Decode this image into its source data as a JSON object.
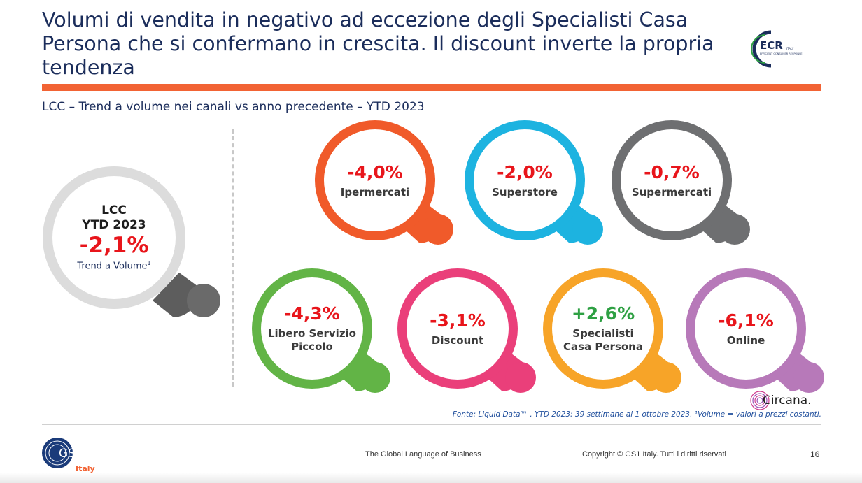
{
  "title": "Volumi di vendita in negativo ad eccezione degli Specialisti Casa Persona che si confermano in crescita. Il discount inverte la propria tendenza",
  "subtitle": "LCC – Trend a volume nei canali vs anno precedente – YTD 2023",
  "logo_ecr": {
    "main": "ECR",
    "tag": "ITALY",
    "sub": "EFFICIENT CONSUMER RESPONSE"
  },
  "colors": {
    "title": "#1b2d5b",
    "accent_bar": "#f26334",
    "negative": "#e8151b",
    "positive": "#2ea043"
  },
  "lcc": {
    "line1": "LCC",
    "line2": "YTD 2023",
    "value": "-2,1%",
    "label": "Trend a Volume",
    "footnote_mark": "1"
  },
  "channels": [
    {
      "value": "-4,0%",
      "label": [
        "Ipermercati"
      ],
      "color": "#f05a2a",
      "positive": false
    },
    {
      "value": "-2,0%",
      "label": [
        "Superstore"
      ],
      "color": "#1db3e0",
      "positive": false
    },
    {
      "value": "-0,7%",
      "label": [
        "Supermercati"
      ],
      "color": "#6e6f71",
      "positive": false
    },
    {
      "value": "-4,3%",
      "label": [
        "Libero Servizio",
        "Piccolo"
      ],
      "color": "#62b446",
      "positive": false
    },
    {
      "value": "-3,1%",
      "label": [
        "Discount"
      ],
      "color": "#ea3f7a",
      "positive": false
    },
    {
      "value": "+2,6%",
      "label": [
        "Specialisti",
        "Casa Persona"
      ],
      "color": "#f7a428",
      "positive": true
    },
    {
      "value": "-6,1%",
      "label": [
        "Online"
      ],
      "color": "#b779b9",
      "positive": false
    }
  ],
  "source_note": "Fonte: Liquid Data™ . YTD 2023: 39 settimane al 1 ottobre 2023. ¹Volume = valori a prezzi costanti.",
  "circana": "Circana.",
  "footer": {
    "gs1": "GS1",
    "gs1_sub": "Italy",
    "tagline": "The Global Language of Business",
    "copyright": "Copyright © GS1 Italy. Tutti i diritti riservati",
    "page": "16"
  }
}
